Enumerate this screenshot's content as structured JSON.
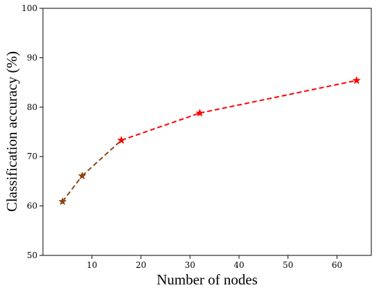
{
  "chart_data": {
    "type": "line",
    "xlabel": "Number of nodes",
    "ylabel": "Classification accuracy (%)",
    "xlim": [
      0,
      67
    ],
    "ylim": [
      50,
      100
    ],
    "xticks": [
      10,
      20,
      30,
      40,
      50,
      60
    ],
    "yticks": [
      50,
      60,
      70,
      80,
      90,
      100
    ],
    "grid": false,
    "series": [
      {
        "x": [
          4,
          8,
          16,
          32,
          64
        ],
        "y": [
          60.9,
          66.1,
          73.3,
          78.8,
          85.4
        ],
        "line_style": "dashed",
        "marker": "star",
        "segment_colors": [
          "#8b4513",
          "#8b4513",
          "#ff0000",
          "#ff0000"
        ],
        "marker_colors": [
          "#8b4513",
          "#8b4513",
          "#ff0000",
          "#ff0000",
          "#ff0000"
        ]
      }
    ]
  }
}
